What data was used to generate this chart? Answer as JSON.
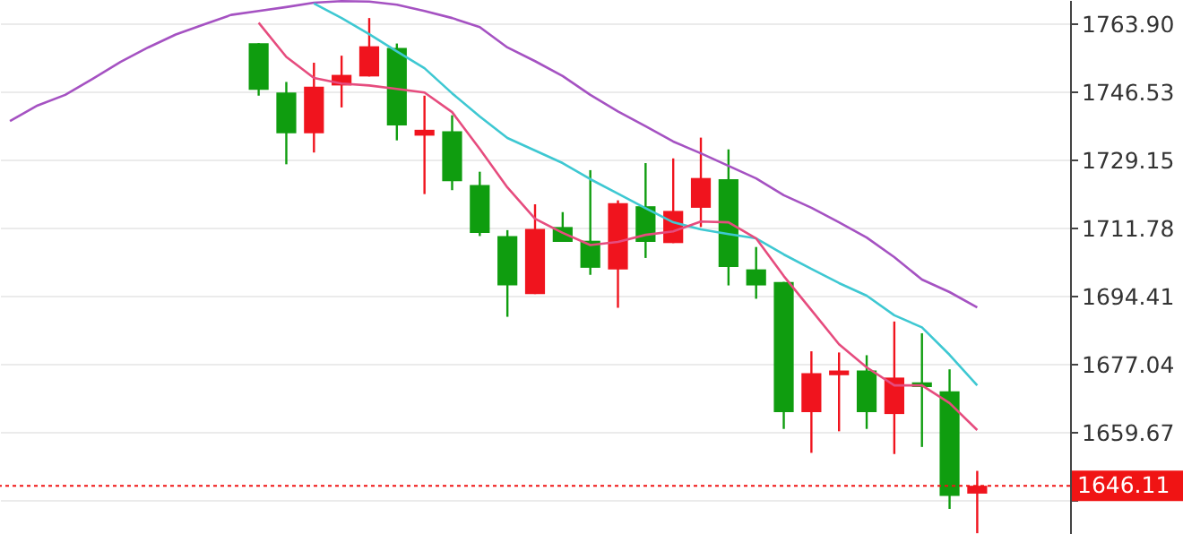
{
  "chart_data": {
    "type": "candlestick",
    "categories": [
      null,
      null,
      null,
      null,
      null,
      null,
      null,
      null,
      null,
      null,
      null,
      null,
      null,
      null,
      null,
      null,
      null,
      null,
      null,
      null,
      null,
      null,
      null,
      null,
      null,
      null,
      null,
      null,
      null,
      null,
      null,
      null,
      null,
      null,
      null,
      null,
      null,
      null,
      null
    ],
    "ohlc": [
      null,
      null,
      null,
      null,
      null,
      null,
      null,
      null,
      null,
      [
        1759.0,
        1759.0,
        1745.6,
        1747.1
      ],
      [
        1746.4,
        1749.1,
        1728.1,
        1736.0
      ],
      [
        1736.0,
        1754.0,
        1731.1,
        1747.9
      ],
      [
        1748.2,
        1755.8,
        1742.6,
        1750.9
      ],
      [
        1750.5,
        1765.4,
        1750.5,
        1758.2
      ],
      [
        1757.8,
        1758.9,
        1734.2,
        1738.0
      ],
      [
        1735.4,
        1745.6,
        1720.5,
        1736.9
      ],
      [
        1736.5,
        1740.6,
        1721.5,
        1723.8
      ],
      [
        1722.8,
        1726.2,
        1709.8,
        1710.6
      ],
      [
        1709.8,
        1711.3,
        1689.2,
        1697.2
      ],
      [
        1695.0,
        1717.9,
        1695.0,
        1711.6
      ],
      [
        1712.1,
        1715.9,
        1708.3,
        1708.3
      ],
      [
        1708.6,
        1726.6,
        1699.9,
        1701.7
      ],
      [
        1701.3,
        1718.9,
        1691.5,
        1718.2
      ],
      [
        1717.4,
        1728.4,
        1704.2,
        1708.3
      ],
      [
        1708.0,
        1729.6,
        1708.0,
        1716.2
      ],
      [
        1717.0,
        1734.9,
        1712.1,
        1724.6
      ],
      [
        1724.3,
        1731.9,
        1697.2,
        1701.9
      ],
      [
        1701.3,
        1707.0,
        1693.8,
        1697.2
      ],
      [
        1698.1,
        1698.1,
        1660.6,
        1664.9
      ],
      [
        1664.9,
        1680.4,
        1654.5,
        1674.8
      ],
      [
        1674.3,
        1680.1,
        1660.0,
        1675.5
      ],
      [
        1675.5,
        1679.4,
        1660.6,
        1664.9
      ],
      [
        1664.4,
        1688.0,
        1654.2,
        1673.7
      ],
      [
        1672.5,
        1685.0,
        1656.0,
        1671.3
      ],
      [
        1670.2,
        1675.8,
        1640.2,
        1643.5
      ],
      [
        1644.1,
        1649.9,
        1634.0,
        1646.11
      ],
      null,
      null,
      null
    ],
    "colors": [
      null,
      null,
      null,
      null,
      null,
      null,
      null,
      null,
      null,
      "#0f9d0f",
      "#0f9d0f",
      "#f0141e",
      "#f0141e",
      "#f0141e",
      "#0f9d0f",
      "#f0141e",
      "#0f9d0f",
      "#0f9d0f",
      "#0f9d0f",
      "#f0141e",
      "#0f9d0f",
      "#0f9d0f",
      "#f0141e",
      "#0f9d0f",
      "#f0141e",
      "#f0141e",
      "#0f9d0f",
      "#0f9d0f",
      "#0f9d0f",
      "#f0141e",
      "#f0141e",
      "#0f9d0f",
      "#f0141e",
      "#0f9d0f",
      "#0f9d0f",
      "#f0141e",
      null,
      null,
      null
    ],
    "series": [
      {
        "type": "line",
        "color": "#a552c2",
        "values": [
          1739.1,
          1743.1,
          1745.8,
          1749.9,
          1754.2,
          1757.9,
          1761.2,
          1763.7,
          1766.2,
          1767.2,
          1768.2,
          1769.3,
          1769.7,
          1769.6,
          1768.8,
          1767.2,
          1765.4,
          1763.1,
          1757.9,
          1754.4,
          1750.6,
          1745.8,
          1741.6,
          1737.8,
          1733.9,
          1730.9,
          1727.7,
          1724.5,
          1720.2,
          1717.0,
          1713.3,
          1709.4,
          1704.4,
          1698.7,
          1695.5,
          1691.6,
          null,
          null,
          null
        ]
      },
      {
        "type": "line",
        "color": "#3ec8d2",
        "values": [
          null,
          null,
          null,
          null,
          null,
          null,
          null,
          null,
          null,
          null,
          null,
          1769.1,
          1765.4,
          1761.3,
          1756.9,
          1752.6,
          1746.2,
          1740.3,
          1734.8,
          1731.6,
          1728.4,
          1724.3,
          1720.6,
          1716.9,
          1713.3,
          1711.5,
          1710.3,
          1709.2,
          1705.1,
          1701.4,
          1697.8,
          1694.6,
          1689.6,
          1686.5,
          1679.5,
          1671.7,
          null,
          null,
          null
        ]
      },
      {
        "type": "line",
        "color": "#e64c7e",
        "values": [
          null,
          null,
          null,
          null,
          null,
          null,
          null,
          null,
          null,
          1764.2,
          1755.5,
          1750.1,
          1748.7,
          1748.2,
          1747.3,
          1746.4,
          1741.4,
          1732.0,
          1722.2,
          1714.2,
          1710.6,
          1707.5,
          1708.3,
          1710.1,
          1711.0,
          1713.5,
          1713.3,
          1709.2,
          1699.6,
          1690.9,
          1682.2,
          1676.3,
          1671.7,
          1671.7,
          1667.2,
          1660.3,
          null,
          null,
          null
        ]
      }
    ],
    "ylim": [
      1633.8,
      1770.0
    ],
    "yticks": [
      {
        "value": 1763.9,
        "label": "1763.90"
      },
      {
        "value": 1746.53,
        "label": "1746.53"
      },
      {
        "value": 1729.15,
        "label": "1729.15"
      },
      {
        "value": 1711.78,
        "label": "1711.78"
      },
      {
        "value": 1694.41,
        "label": "1694.41"
      },
      {
        "value": 1677.04,
        "label": "1677.04"
      },
      {
        "value": 1659.67,
        "label": "1659.67"
      },
      {
        "value": 1642.3,
        "label": null
      }
    ],
    "ref_lines": [
      {
        "axis": "y",
        "value": 1646.11,
        "label": "1646.11",
        "color": "#f01414",
        "line_style": "dotted"
      }
    ],
    "grid": "y",
    "tick_labels": "y"
  }
}
